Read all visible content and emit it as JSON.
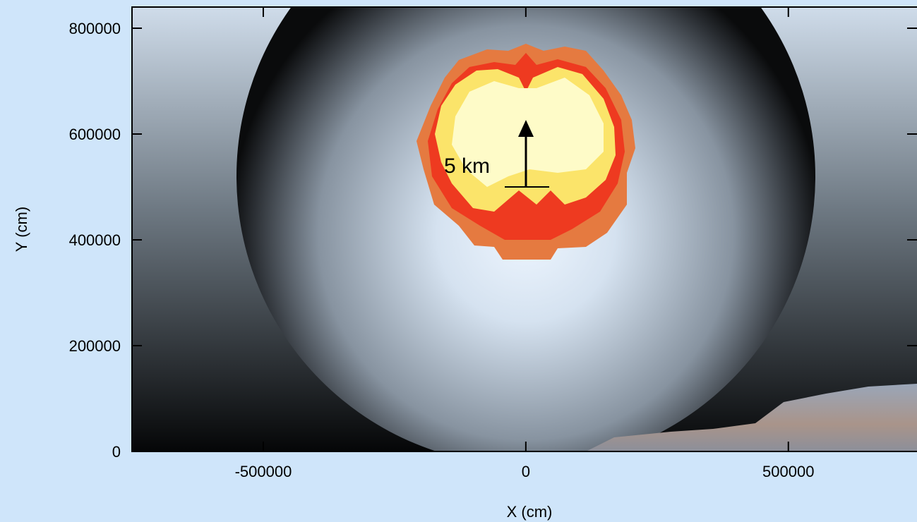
{
  "chart_data": {
    "type": "image",
    "xlabel": "X (cm)",
    "ylabel": "Y (cm)",
    "annotation": "5 km",
    "xlim": [
      -750000,
      745000
    ],
    "ylim": [
      0,
      840000
    ],
    "xticks": [
      -500000,
      0,
      500000
    ],
    "yticks": [
      0,
      200000,
      400000,
      600000,
      800000
    ]
  }
}
